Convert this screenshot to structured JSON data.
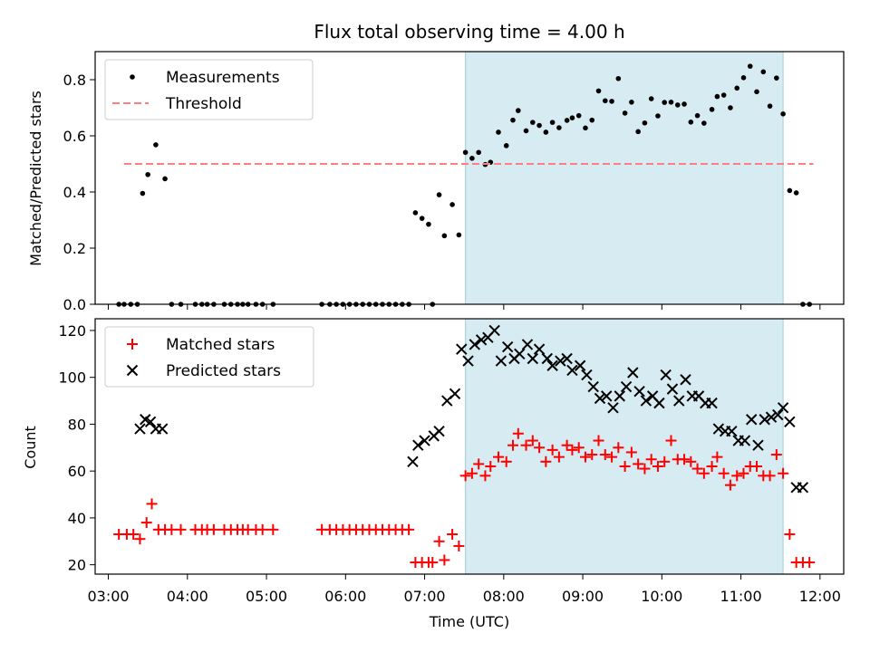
{
  "chart_data": [
    {
      "type": "scatter",
      "title": "Flux total observing time = 4.00 h",
      "xlabel": "",
      "ylabel": "Matched/Predicted stars",
      "xlim": [
        "02:50",
        "12:18"
      ],
      "ylim": [
        0,
        0.9
      ],
      "yticks": [
        0.0,
        0.2,
        0.4,
        0.6,
        0.8
      ],
      "ytick_labels": [
        "0.0",
        "0.2",
        "0.4",
        "0.6",
        "0.8"
      ],
      "shaded_interval": [
        "07:31",
        "11:32"
      ],
      "legend_position": "top-left",
      "series": [
        {
          "name": "Measurements",
          "marker": "dot",
          "color": "#000000",
          "x": [
            "03:08",
            "03:12",
            "03:17",
            "03:22",
            "03:26",
            "03:30",
            "03:36",
            "03:43",
            "03:48",
            "03:55",
            "04:06",
            "04:11",
            "04:15",
            "04:20",
            "04:28",
            "04:33",
            "04:38",
            "04:42",
            "04:46",
            "04:52",
            "04:57",
            "05:05",
            "05:42",
            "05:48",
            "05:53",
            "05:58",
            "06:03",
            "06:08",
            "06:13",
            "06:18",
            "06:23",
            "06:28",
            "06:33",
            "06:38",
            "06:43",
            "06:48",
            "06:53",
            "06:58",
            "07:03",
            "07:06",
            "07:11",
            "07:15",
            "07:21",
            "07:26",
            "07:31",
            "07:36",
            "07:41",
            "07:46",
            "07:50",
            "07:56",
            "08:02",
            "08:07",
            "08:11",
            "08:17",
            "08:22",
            "08:27",
            "08:32",
            "08:37",
            "08:42",
            "08:48",
            "08:52",
            "08:57",
            "09:02",
            "09:07",
            "09:12",
            "09:17",
            "09:22",
            "09:27",
            "09:32",
            "09:37",
            "09:42",
            "09:47",
            "09:52",
            "09:57",
            "10:02",
            "10:07",
            "10:12",
            "10:17",
            "10:22",
            "10:27",
            "10:32",
            "10:38",
            "10:42",
            "10:47",
            "10:52",
            "10:57",
            "11:02",
            "11:07",
            "11:12",
            "11:17",
            "11:22",
            "11:27",
            "11:32",
            "11:37",
            "11:42",
            "11:47",
            "11:52"
          ],
          "y": [
            0.0,
            0.0,
            0.0,
            0.0,
            0.395,
            0.462,
            0.568,
            0.447,
            0.0,
            0.0,
            0.0,
            0.0,
            0.0,
            0.0,
            0.0,
            0.0,
            0.0,
            0.0,
            0.0,
            0.0,
            0.0,
            0.0,
            0.0,
            0.0,
            0.0,
            0.0,
            0.0,
            0.0,
            0.0,
            0.0,
            0.0,
            0.0,
            0.0,
            0.0,
            0.0,
            0.0,
            0.326,
            0.306,
            0.285,
            0.0,
            0.39,
            0.244,
            0.355,
            0.247,
            0.541,
            0.52,
            0.541,
            0.498,
            0.506,
            0.613,
            0.565,
            0.656,
            0.69,
            0.618,
            0.648,
            0.637,
            0.613,
            0.648,
            0.629,
            0.655,
            0.664,
            0.672,
            0.628,
            0.656,
            0.76,
            0.725,
            0.723,
            0.804,
            0.681,
            0.72,
            0.615,
            0.646,
            0.732,
            0.671,
            0.719,
            0.72,
            0.71,
            0.713,
            0.649,
            0.672,
            0.645,
            0.694,
            0.74,
            0.745,
            0.7,
            0.77,
            0.807,
            0.848,
            0.757,
            0.828,
            0.706,
            0.806,
            0.678,
            0.405,
            0.397,
            0.0,
            0.0
          ]
        },
        {
          "name": "Threshold",
          "marker": "dashed-line",
          "color": "#ff7f7f",
          "x": [
            "03:12",
            "11:55"
          ],
          "y": [
            0.5,
            0.5
          ]
        }
      ]
    },
    {
      "type": "scatter",
      "title": "",
      "xlabel": "Time (UTC)",
      "ylabel": "Count",
      "xlim": [
        "02:50",
        "12:18"
      ],
      "ylim": [
        16,
        125
      ],
      "yticks": [
        20,
        40,
        60,
        80,
        100,
        120
      ],
      "ytick_labels": [
        "20",
        "40",
        "60",
        "80",
        "100",
        "120"
      ],
      "xticks": [
        "03:00",
        "04:00",
        "05:00",
        "06:00",
        "07:00",
        "08:00",
        "09:00",
        "10:00",
        "11:00",
        "12:00"
      ],
      "xtick_labels": [
        "03:00",
        "04:00",
        "05:00",
        "06:00",
        "07:00",
        "08:00",
        "09:00",
        "10:00",
        "11:00",
        "12:00"
      ],
      "shaded_interval": [
        "07:31",
        "11:32"
      ],
      "legend_position": "top-left",
      "series": [
        {
          "name": "Matched stars",
          "marker": "plus",
          "color": "#ff0000",
          "x": [
            "03:08",
            "03:14",
            "03:19",
            "03:24",
            "03:29",
            "03:33",
            "03:38",
            "03:43",
            "03:48",
            "03:55",
            "04:06",
            "04:11",
            "04:15",
            "04:20",
            "04:28",
            "04:33",
            "04:38",
            "04:42",
            "04:46",
            "04:52",
            "04:57",
            "05:05",
            "05:42",
            "05:48",
            "05:53",
            "05:58",
            "06:03",
            "06:08",
            "06:13",
            "06:18",
            "06:23",
            "06:28",
            "06:33",
            "06:38",
            "06:43",
            "06:48",
            "06:53",
            "06:58",
            "07:03",
            "07:06",
            "07:11",
            "07:15",
            "07:21",
            "07:26",
            "07:31",
            "07:36",
            "07:41",
            "07:46",
            "07:50",
            "07:56",
            "08:02",
            "08:07",
            "08:11",
            "08:17",
            "08:22",
            "08:27",
            "08:32",
            "08:37",
            "08:42",
            "08:48",
            "08:52",
            "08:57",
            "09:02",
            "09:07",
            "09:12",
            "09:17",
            "09:22",
            "09:27",
            "09:32",
            "09:37",
            "09:42",
            "09:47",
            "09:52",
            "09:57",
            "10:02",
            "10:07",
            "10:12",
            "10:17",
            "10:22",
            "10:27",
            "10:32",
            "10:38",
            "10:42",
            "10:47",
            "10:52",
            "10:57",
            "11:02",
            "11:07",
            "11:12",
            "11:17",
            "11:22",
            "11:27",
            "11:32",
            "11:37",
            "11:42",
            "11:47",
            "11:52"
          ],
          "y": [
            33,
            33,
            33,
            31,
            38,
            46,
            35,
            35,
            35,
            35,
            35,
            35,
            35,
            35,
            35,
            35,
            35,
            35,
            35,
            35,
            35,
            35,
            35,
            35,
            35,
            35,
            35,
            35,
            35,
            35,
            35,
            35,
            35,
            35,
            35,
            35,
            21,
            21,
            21,
            21,
            30,
            22,
            33,
            28,
            58,
            59,
            63,
            58,
            62,
            66,
            64,
            71,
            76,
            71,
            73,
            70,
            64,
            69,
            66,
            71,
            69,
            70,
            66,
            67,
            73,
            67,
            66,
            70,
            62,
            68,
            63,
            61,
            65,
            62,
            64,
            73,
            65,
            65,
            64,
            61,
            59,
            62,
            66,
            59,
            54,
            58,
            59,
            62,
            62,
            58,
            58,
            67,
            59,
            33,
            21,
            21,
            21
          ]
        },
        {
          "name": "Predicted stars",
          "marker": "x",
          "color": "#000000",
          "x": [
            "03:24",
            "03:28",
            "03:32",
            "03:36",
            "03:41",
            "06:51",
            "06:55",
            "07:00",
            "07:07",
            "07:11",
            "07:17",
            "07:23",
            "07:28",
            "07:33",
            "07:38",
            "07:43",
            "07:48",
            "07:53",
            "07:58",
            "08:03",
            "08:08",
            "08:12",
            "08:18",
            "08:22",
            "08:27",
            "08:33",
            "08:37",
            "08:43",
            "08:48",
            "08:52",
            "08:58",
            "09:03",
            "09:08",
            "09:13",
            "09:18",
            "09:23",
            "09:28",
            "09:33",
            "09:38",
            "09:43",
            "09:48",
            "09:53",
            "09:58",
            "10:03",
            "10:08",
            "10:13",
            "10:18",
            "10:23",
            "10:28",
            "10:33",
            "10:38",
            "10:43",
            "10:48",
            "10:53",
            "10:58",
            "11:03",
            "11:08",
            "11:13",
            "11:18",
            "11:23",
            "11:28",
            "11:32",
            "11:37",
            "11:42",
            "11:47"
          ],
          "y": [
            78,
            82,
            81,
            78,
            78,
            64,
            71,
            73,
            75,
            77,
            90,
            93,
            112,
            107,
            114,
            116,
            117,
            120,
            107,
            113,
            108,
            110,
            114,
            108,
            112,
            108,
            105,
            107,
            108,
            103,
            105,
            101,
            96,
            91,
            92,
            87,
            92,
            96,
            102,
            94,
            90,
            92,
            89,
            101,
            95,
            90,
            99,
            92,
            92,
            89,
            89,
            78,
            77,
            77,
            73,
            73,
            82,
            71,
            82,
            83,
            84,
            87,
            81,
            53,
            53
          ]
        }
      ]
    }
  ]
}
